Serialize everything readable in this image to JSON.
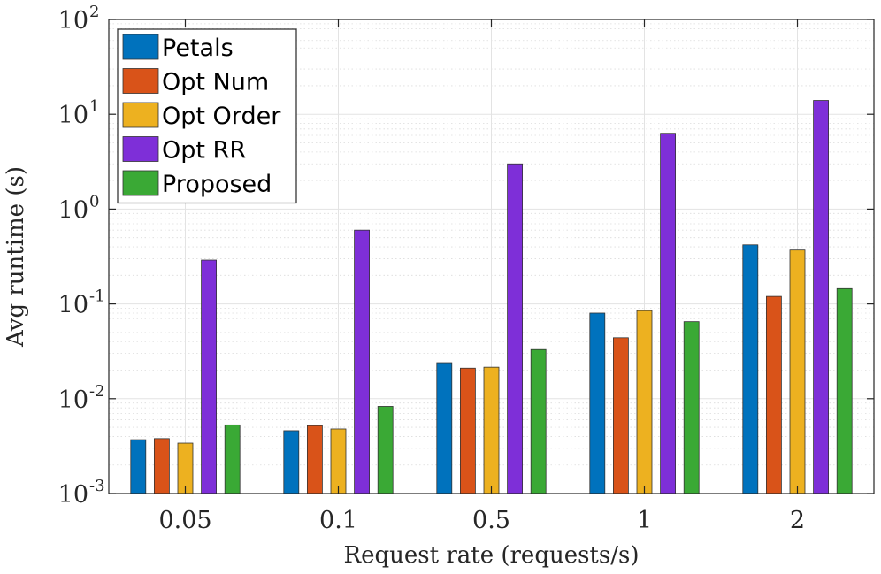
{
  "chart_data": {
    "type": "bar",
    "yscale": "log",
    "categories": [
      "0.05",
      "0.1",
      "0.5",
      "1",
      "2"
    ],
    "series": [
      {
        "name": "Petals",
        "color": "#0072BD",
        "values": [
          0.0037,
          0.0046,
          0.024,
          0.08,
          0.42
        ]
      },
      {
        "name": "Opt Num",
        "color": "#D95319",
        "values": [
          0.0038,
          0.0052,
          0.021,
          0.044,
          0.12
        ]
      },
      {
        "name": "Opt Order",
        "color": "#EDB120",
        "values": [
          0.0034,
          0.0048,
          0.0215,
          0.085,
          0.37
        ]
      },
      {
        "name": "Opt RR",
        "color": "#7E2FD8",
        "values": [
          0.29,
          0.6,
          3.0,
          6.3,
          14.0
        ]
      },
      {
        "name": "Proposed",
        "color": "#3AA935",
        "values": [
          0.0053,
          0.0083,
          0.033,
          0.065,
          0.145
        ]
      }
    ],
    "ylim": [
      0.001,
      100
    ],
    "yticks": [
      {
        "base": "10",
        "exp": "-3"
      },
      {
        "base": "10",
        "exp": "-2"
      },
      {
        "base": "10",
        "exp": "-1"
      },
      {
        "base": "10",
        "exp": "0"
      },
      {
        "base": "10",
        "exp": "1"
      },
      {
        "base": "10",
        "exp": "2"
      }
    ],
    "xlabel": "Request rate (requests/s)",
    "ylabel": "Avg runtime (s)",
    "grid": true,
    "legend_position": "top-left"
  }
}
